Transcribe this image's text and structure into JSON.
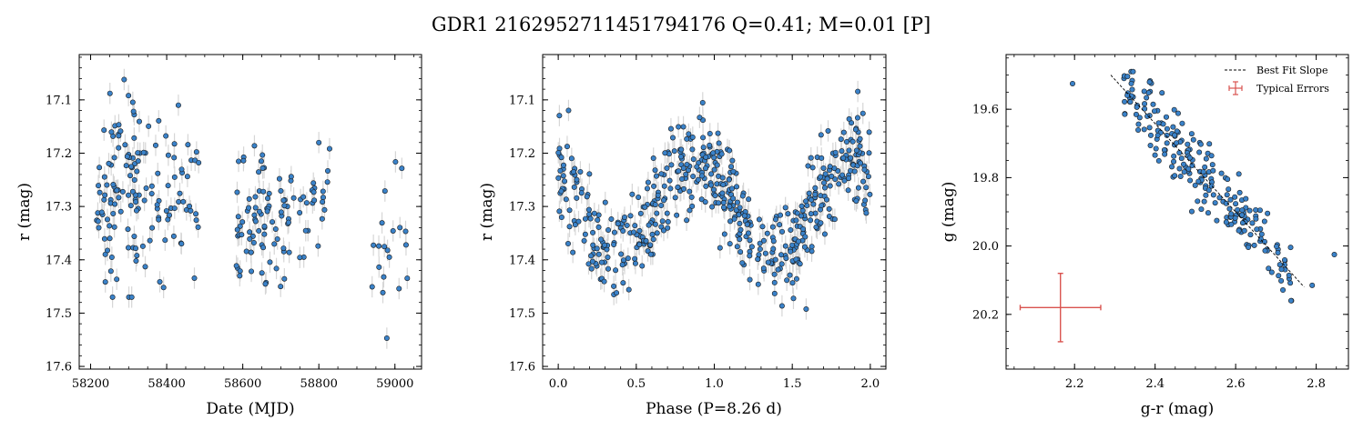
{
  "figure": {
    "suptitle": "GDR1 2162952711451794176  Q=0.41; M=0.01 [P]",
    "colors": {
      "point_fill": "#3a82c9",
      "point_edge": "#1a1a1a",
      "errorbar": "#d6d6d6",
      "fit_line": "#000000",
      "typical_error": "#d9534f"
    }
  },
  "chart_data": [
    {
      "type": "scatter",
      "panel": "light-curve",
      "title": "",
      "xlabel": "Date (MJD)",
      "ylabel": "r (mag)",
      "xlim": [
        58170,
        59070
      ],
      "ylim": [
        17.605,
        17.015
      ],
      "y_inverted": true,
      "xticks": [
        58200,
        58400,
        58600,
        58800,
        59000
      ],
      "yticks": [
        17.1,
        17.2,
        17.3,
        17.4,
        17.5,
        17.6
      ],
      "ytick_labels": [
        "17.1",
        "17.2",
        "17.3",
        "17.4",
        "17.5",
        "17.6"
      ],
      "error_bars": true,
      "clusters": [
        {
          "x_range": [
            58215,
            58335
          ],
          "y_range": [
            17.06,
            17.47
          ],
          "n": 90
        },
        {
          "x_range": [
            58335,
            58485
          ],
          "y_range": [
            17.11,
            17.48
          ],
          "n": 55
        },
        {
          "x_range": [
            58580,
            58720
          ],
          "y_range": [
            17.18,
            17.45
          ],
          "n": 75
        },
        {
          "x_range": [
            58720,
            58830
          ],
          "y_range": [
            17.15,
            17.45
          ],
          "n": 30
        },
        {
          "x_range": [
            58940,
            59035
          ],
          "y_range": [
            17.21,
            17.55
          ],
          "n": 20
        }
      ]
    },
    {
      "type": "scatter",
      "panel": "phase-folded",
      "title": "",
      "xlabel": "Phase (P=8.26 d)",
      "ylabel": "r (mag)",
      "xlim": [
        -0.1,
        2.1
      ],
      "ylim": [
        17.605,
        17.015
      ],
      "y_inverted": true,
      "xticks": [
        0.0,
        0.5,
        1.0,
        1.5,
        2.0
      ],
      "xtick_labels": [
        "0.0",
        "0.5",
        "1.0",
        "1.5",
        "2.0"
      ],
      "yticks": [
        17.1,
        17.2,
        17.3,
        17.4,
        17.5,
        17.6
      ],
      "ytick_labels": [
        "17.1",
        "17.2",
        "17.3",
        "17.4",
        "17.5",
        "17.6"
      ],
      "period_days": 8.26,
      "n_points": 540,
      "light_curve_model": {
        "mean": 17.3,
        "amplitude": 0.09,
        "phase_of_min_brightness": 0.38,
        "scatter": 0.045
      },
      "error_bars": true
    },
    {
      "type": "scatter",
      "panel": "color-magnitude",
      "title": "",
      "xlabel": "g-r (mag)",
      "ylabel": "g (mag)",
      "xlim": [
        2.03,
        2.88
      ],
      "ylim": [
        20.36,
        19.44
      ],
      "y_inverted": true,
      "xticks": [
        2.2,
        2.4,
        2.6,
        2.8
      ],
      "xtick_labels": [
        "2.2",
        "2.4",
        "2.6",
        "2.8"
      ],
      "yticks": [
        19.6,
        19.8,
        20.0,
        20.2
      ],
      "ytick_labels": [
        "19.6",
        "19.8",
        "20.0",
        "20.2"
      ],
      "n_points": 220,
      "best_fit_slope": {
        "x": [
          2.29,
          2.77
        ],
        "y": [
          19.5,
          20.12
        ]
      },
      "typical_errors": {
        "x": 2.165,
        "y": 20.18,
        "xerr": 0.1,
        "yerr": 0.1
      },
      "legend": {
        "placement": "top-right",
        "entries": [
          "Best Fit Slope",
          "Typical Errors"
        ]
      }
    }
  ]
}
